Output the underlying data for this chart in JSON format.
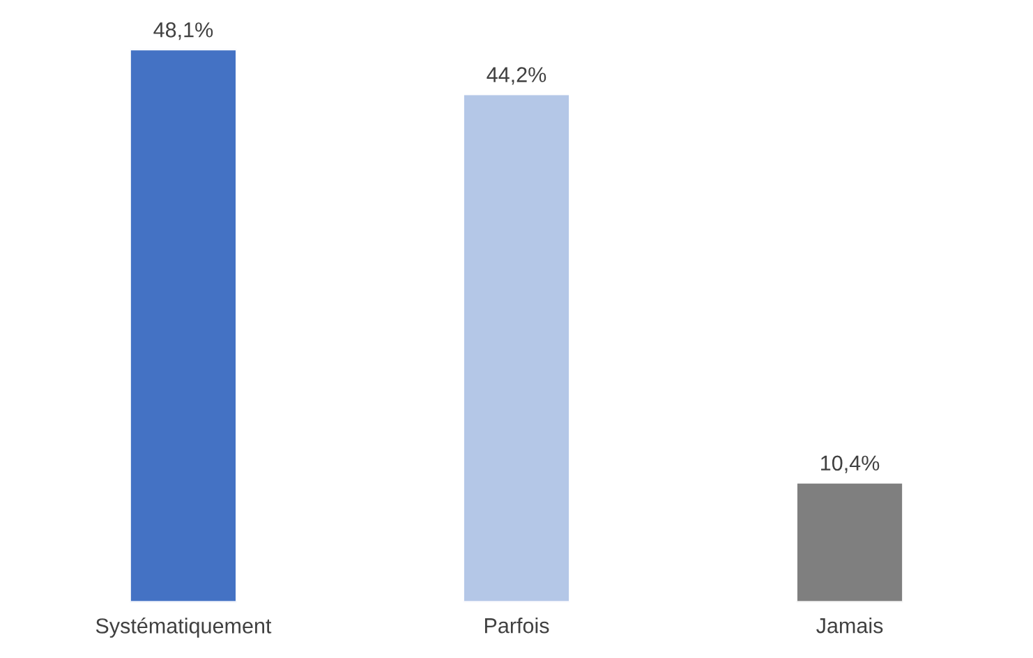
{
  "chart_data": {
    "type": "bar",
    "categories": [
      "Systématiquement",
      "Parfois",
      "Jamais"
    ],
    "values": [
      48.1,
      44.2,
      10.4
    ],
    "colors": [
      "#4472c4",
      "#b4c7e7",
      "#7f7f7f"
    ],
    "value_labels": [
      "48,1%",
      "44,2%",
      "10,4%"
    ],
    "grid": false,
    "legend": false
  }
}
